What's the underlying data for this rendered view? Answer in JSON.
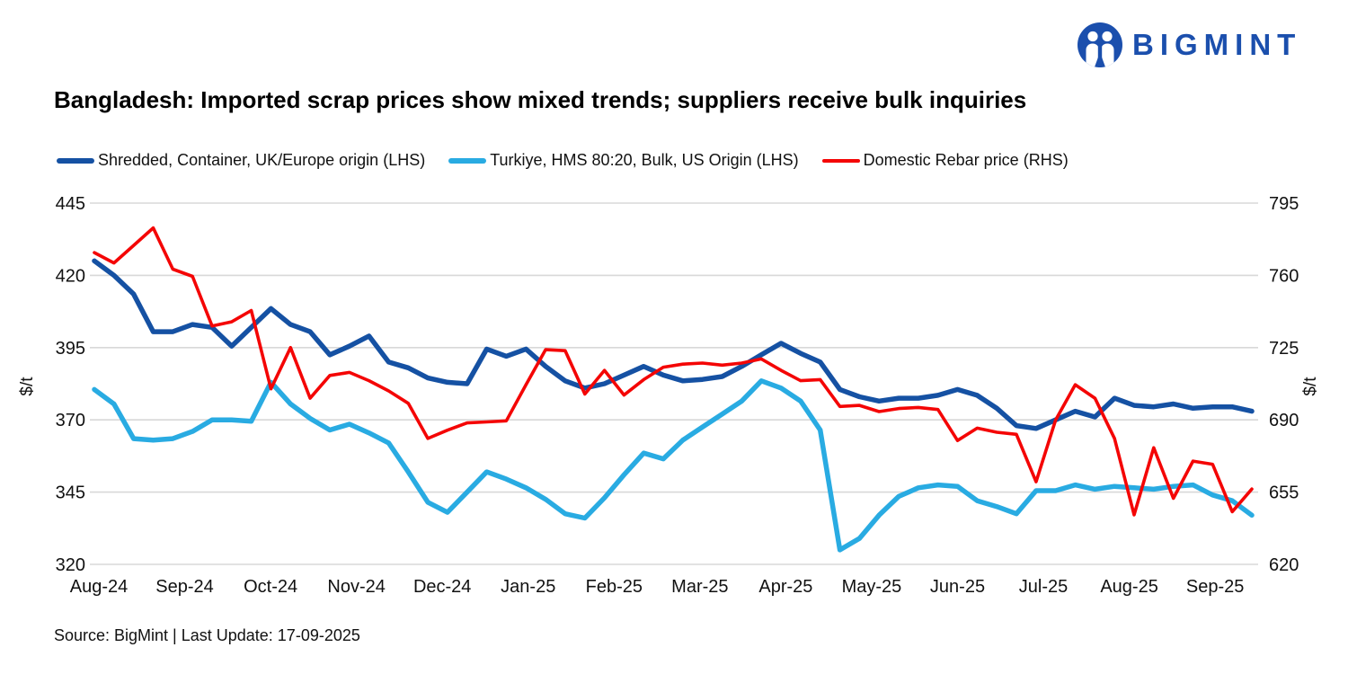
{
  "header": {
    "logo_text": "BIGMINT",
    "title": "Bangladesh: Imported scrap prices show mixed trends; suppliers receive bulk inquiries"
  },
  "footer": {
    "source_line": "Source: BigMint | Last Update: 17-09-2025"
  },
  "colors": {
    "shredded": "#1551a3",
    "turkiye": "#29abe2",
    "rebar": "#f40505",
    "grid": "#d8d8d8",
    "logo_blue": "#1b4fad",
    "text": "#111111"
  },
  "chart_data": {
    "type": "line",
    "title": "Bangladesh: Imported scrap prices show mixed trends; suppliers receive bulk inquiries",
    "x_axis": {
      "tick_labels": [
        "Aug-24",
        "Sep-24",
        "Oct-24",
        "Nov-24",
        "Dec-24",
        "Jan-25",
        "Feb-25",
        "Mar-25",
        "Apr-25",
        "May-25",
        "Jun-25",
        "Jul-25",
        "Aug-25",
        "Sep-25"
      ],
      "frequency": "weekly"
    },
    "left_axis": {
      "label": "$/t",
      "range": [
        320,
        445
      ],
      "ticks": [
        445,
        420,
        395,
        370,
        345,
        320
      ]
    },
    "right_axis": {
      "label": "$/t",
      "range": [
        620,
        795
      ],
      "ticks": [
        795,
        760,
        725,
        690,
        655,
        620
      ]
    },
    "grid": "horizontal-only",
    "legend_position": "top-left",
    "series": [
      {
        "name": "Shredded, Container, UK/Europe origin (LHS)",
        "axis": "left",
        "color_key": "shredded",
        "stroke_width": 5.5,
        "values": [
          425,
          420,
          413.5,
          400.5,
          400.5,
          403,
          402,
          395.5,
          402,
          408.5,
          403,
          400.5,
          392.5,
          395.5,
          399,
          390,
          388,
          384.5,
          383,
          382.5,
          394.5,
          392,
          394.5,
          388.5,
          383.5,
          381,
          382.5,
          385.5,
          388.5,
          385.5,
          383.5,
          384,
          385,
          388.5,
          392.5,
          396.5,
          393,
          390,
          380.5,
          378,
          376.5,
          377.5,
          377.5,
          378.5,
          380.5,
          378.5,
          374,
          368,
          367,
          370,
          373,
          371,
          377.5,
          375,
          374.5,
          375.5,
          374,
          374.5,
          374.5,
          373
        ]
      },
      {
        "name": "Turkiye, HMS 80:20, Bulk, US Origin (LHS)",
        "axis": "left",
        "color_key": "turkiye",
        "stroke_width": 5.5,
        "values": [
          380.5,
          375.5,
          363.5,
          363,
          363.5,
          366,
          370,
          370,
          369.5,
          383,
          375.5,
          370.5,
          366.5,
          368.5,
          365.5,
          362,
          352,
          341.5,
          338,
          345,
          352,
          349.5,
          346.5,
          342.5,
          337.5,
          336,
          343,
          351,
          358.5,
          356.5,
          363,
          367.5,
          372,
          376.5,
          383.5,
          381,
          376.5,
          366.5,
          325,
          329,
          337,
          343.5,
          346.5,
          347.5,
          347,
          342,
          340,
          337.5,
          345.5,
          345.5,
          347.5,
          346,
          347,
          346.5,
          346,
          347,
          347.5,
          344,
          342,
          337
        ]
      },
      {
        "name": "Domestic Rebar price (RHS)",
        "axis": "right",
        "color_key": "rebar",
        "stroke_width": 3.6,
        "values": [
          771,
          766,
          774.5,
          783,
          763,
          759.5,
          735.5,
          737.5,
          743,
          705,
          725,
          700.5,
          711.5,
          713,
          709,
          704,
          698,
          681,
          685,
          688.5,
          689,
          689.5,
          707,
          724,
          723.5,
          702.5,
          714,
          702,
          709.5,
          715.5,
          717,
          717.5,
          716.5,
          717.5,
          719.5,
          714,
          709,
          709.5,
          696.5,
          697,
          694,
          695.5,
          696,
          695,
          680,
          686,
          684,
          683,
          660,
          690,
          707,
          700.5,
          681,
          644,
          676.5,
          652,
          670,
          668.5,
          645.5,
          656.5
        ]
      }
    ]
  }
}
